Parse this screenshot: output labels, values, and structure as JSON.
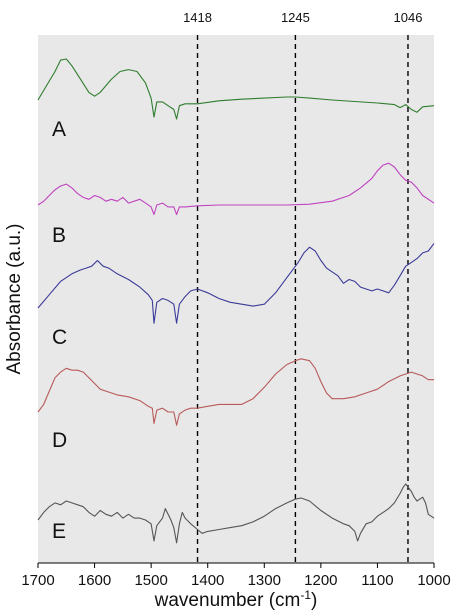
{
  "chart_data": {
    "type": "line",
    "title": "",
    "xlabel": "wavenumber (cm",
    "xlabel_sup": "-1",
    "xlabel_close": ")",
    "ylabel": "Absorbance (a.u.)",
    "x_reversed": true,
    "xlim": [
      1700,
      1000
    ],
    "xticks": [
      1700,
      1600,
      1500,
      1400,
      1300,
      1200,
      1100,
      1000
    ],
    "y_ticks_shown": false,
    "background": "#e8e8e8",
    "reference_lines": [
      {
        "x": 1418,
        "label": "1418"
      },
      {
        "x": 1245,
        "label": "1245"
      },
      {
        "x": 1046,
        "label": "1046"
      }
    ],
    "series": [
      {
        "name": "A",
        "color": "#2f7d2f",
        "points": [
          [
            1700,
            0.0
          ],
          [
            1680,
            0.5
          ],
          [
            1670,
            0.75
          ],
          [
            1660,
            1.05
          ],
          [
            1650,
            1.08
          ],
          [
            1640,
            0.9
          ],
          [
            1625,
            0.55
          ],
          [
            1610,
            0.2
          ],
          [
            1600,
            0.1
          ],
          [
            1590,
            0.2
          ],
          [
            1570,
            0.55
          ],
          [
            1555,
            0.75
          ],
          [
            1540,
            0.8
          ],
          [
            1525,
            0.75
          ],
          [
            1510,
            0.45
          ],
          [
            1500,
            0.05
          ],
          [
            1495,
            -0.45
          ],
          [
            1490,
            -0.05
          ],
          [
            1480,
            -0.05
          ],
          [
            1470,
            -0.15
          ],
          [
            1460,
            -0.25
          ],
          [
            1455,
            -0.5
          ],
          [
            1450,
            -0.15
          ],
          [
            1440,
            -0.1
          ],
          [
            1418,
            -0.1
          ],
          [
            1380,
            -0.02
          ],
          [
            1340,
            0.02
          ],
          [
            1300,
            0.05
          ],
          [
            1260,
            0.08
          ],
          [
            1245,
            0.08
          ],
          [
            1220,
            0.05
          ],
          [
            1180,
            0.0
          ],
          [
            1140,
            -0.04
          ],
          [
            1100,
            -0.08
          ],
          [
            1070,
            -0.12
          ],
          [
            1060,
            -0.2
          ],
          [
            1050,
            -0.12
          ],
          [
            1040,
            -0.25
          ],
          [
            1030,
            -0.32
          ],
          [
            1020,
            -0.18
          ],
          [
            1000,
            -0.15
          ]
        ]
      },
      {
        "name": "B",
        "color": "#c043c0",
        "points": [
          [
            1700,
            0.0
          ],
          [
            1690,
            0.1
          ],
          [
            1680,
            0.25
          ],
          [
            1670,
            0.4
          ],
          [
            1660,
            0.5
          ],
          [
            1650,
            0.55
          ],
          [
            1640,
            0.45
          ],
          [
            1630,
            0.3
          ],
          [
            1620,
            0.2
          ],
          [
            1610,
            0.15
          ],
          [
            1600,
            0.25
          ],
          [
            1590,
            0.2
          ],
          [
            1580,
            0.1
          ],
          [
            1570,
            0.15
          ],
          [
            1560,
            0.1
          ],
          [
            1550,
            0.2
          ],
          [
            1540,
            0.05
          ],
          [
            1530,
            0.1
          ],
          [
            1520,
            0.15
          ],
          [
            1510,
            0.05
          ],
          [
            1500,
            -0.05
          ],
          [
            1495,
            -0.25
          ],
          [
            1490,
            0.0
          ],
          [
            1480,
            0.05
          ],
          [
            1470,
            -0.05
          ],
          [
            1460,
            -0.05
          ],
          [
            1455,
            -0.25
          ],
          [
            1450,
            -0.05
          ],
          [
            1440,
            -0.05
          ],
          [
            1418,
            -0.02
          ],
          [
            1380,
            0.0
          ],
          [
            1340,
            0.0
          ],
          [
            1300,
            0.0
          ],
          [
            1260,
            0.0
          ],
          [
            1220,
            0.02
          ],
          [
            1180,
            0.1
          ],
          [
            1150,
            0.25
          ],
          [
            1130,
            0.45
          ],
          [
            1110,
            0.7
          ],
          [
            1100,
            0.9
          ],
          [
            1090,
            1.05
          ],
          [
            1080,
            1.1
          ],
          [
            1070,
            1.0
          ],
          [
            1060,
            0.8
          ],
          [
            1050,
            0.65
          ],
          [
            1040,
            0.6
          ],
          [
            1030,
            0.45
          ],
          [
            1020,
            0.25
          ],
          [
            1000,
            0.05
          ]
        ]
      },
      {
        "name": "C",
        "color": "#3b3b99",
        "points": [
          [
            1700,
            0.0
          ],
          [
            1680,
            0.35
          ],
          [
            1660,
            0.7
          ],
          [
            1640,
            0.9
          ],
          [
            1625,
            1.0
          ],
          [
            1615,
            1.05
          ],
          [
            1605,
            1.1
          ],
          [
            1595,
            1.25
          ],
          [
            1585,
            1.1
          ],
          [
            1575,
            1.05
          ],
          [
            1560,
            0.9
          ],
          [
            1540,
            0.75
          ],
          [
            1520,
            0.55
          ],
          [
            1505,
            0.35
          ],
          [
            1498,
            0.2
          ],
          [
            1495,
            -0.4
          ],
          [
            1490,
            0.15
          ],
          [
            1480,
            0.25
          ],
          [
            1470,
            0.2
          ],
          [
            1460,
            0.1
          ],
          [
            1455,
            -0.4
          ],
          [
            1450,
            0.1
          ],
          [
            1440,
            0.3
          ],
          [
            1430,
            0.45
          ],
          [
            1418,
            0.5
          ],
          [
            1400,
            0.4
          ],
          [
            1380,
            0.25
          ],
          [
            1360,
            0.15
          ],
          [
            1340,
            0.1
          ],
          [
            1320,
            0.05
          ],
          [
            1300,
            0.1
          ],
          [
            1280,
            0.4
          ],
          [
            1260,
            0.8
          ],
          [
            1240,
            1.2
          ],
          [
            1230,
            1.45
          ],
          [
            1220,
            1.6
          ],
          [
            1210,
            1.5
          ],
          [
            1200,
            1.25
          ],
          [
            1190,
            1.05
          ],
          [
            1180,
            0.95
          ],
          [
            1170,
            0.85
          ],
          [
            1160,
            0.65
          ],
          [
            1150,
            0.75
          ],
          [
            1140,
            0.7
          ],
          [
            1130,
            0.55
          ],
          [
            1110,
            0.45
          ],
          [
            1100,
            0.5
          ],
          [
            1090,
            0.45
          ],
          [
            1080,
            0.4
          ],
          [
            1070,
            0.6
          ],
          [
            1060,
            0.85
          ],
          [
            1050,
            1.1
          ],
          [
            1040,
            1.2
          ],
          [
            1030,
            1.3
          ],
          [
            1020,
            1.45
          ],
          [
            1010,
            1.5
          ],
          [
            1000,
            1.7
          ]
        ]
      },
      {
        "name": "D",
        "color": "#b85a5a",
        "points": [
          [
            1700,
            0.0
          ],
          [
            1690,
            0.2
          ],
          [
            1680,
            0.55
          ],
          [
            1670,
            0.9
          ],
          [
            1660,
            1.05
          ],
          [
            1650,
            1.15
          ],
          [
            1640,
            1.1
          ],
          [
            1630,
            1.1
          ],
          [
            1620,
            1.05
          ],
          [
            1610,
            0.9
          ],
          [
            1600,
            0.75
          ],
          [
            1590,
            0.6
          ],
          [
            1580,
            0.55
          ],
          [
            1560,
            0.45
          ],
          [
            1540,
            0.4
          ],
          [
            1520,
            0.3
          ],
          [
            1505,
            0.15
          ],
          [
            1498,
            0.1
          ],
          [
            1495,
            -0.3
          ],
          [
            1490,
            0.05
          ],
          [
            1480,
            0.1
          ],
          [
            1470,
            0.0
          ],
          [
            1460,
            0.0
          ],
          [
            1455,
            -0.35
          ],
          [
            1450,
            -0.05
          ],
          [
            1440,
            0.05
          ],
          [
            1430,
            0.1
          ],
          [
            1418,
            0.1
          ],
          [
            1400,
            0.15
          ],
          [
            1380,
            0.2
          ],
          [
            1360,
            0.2
          ],
          [
            1340,
            0.2
          ],
          [
            1320,
            0.35
          ],
          [
            1300,
            0.65
          ],
          [
            1280,
            1.0
          ],
          [
            1260,
            1.25
          ],
          [
            1245,
            1.35
          ],
          [
            1235,
            1.4
          ],
          [
            1220,
            1.35
          ],
          [
            1210,
            1.15
          ],
          [
            1200,
            0.8
          ],
          [
            1190,
            0.5
          ],
          [
            1180,
            0.35
          ],
          [
            1160,
            0.35
          ],
          [
            1140,
            0.4
          ],
          [
            1120,
            0.5
          ],
          [
            1100,
            0.6
          ],
          [
            1080,
            0.8
          ],
          [
            1060,
            0.95
          ],
          [
            1050,
            1.0
          ],
          [
            1040,
            1.05
          ],
          [
            1030,
            1.0
          ],
          [
            1020,
            0.95
          ],
          [
            1010,
            0.85
          ],
          [
            1000,
            0.85
          ]
        ]
      },
      {
        "name": "E",
        "color": "#555555",
        "points": [
          [
            1700,
            0.0
          ],
          [
            1690,
            0.2
          ],
          [
            1680,
            0.35
          ],
          [
            1670,
            0.45
          ],
          [
            1660,
            0.4
          ],
          [
            1650,
            0.5
          ],
          [
            1640,
            0.45
          ],
          [
            1630,
            0.4
          ],
          [
            1620,
            0.35
          ],
          [
            1610,
            0.2
          ],
          [
            1600,
            0.1
          ],
          [
            1590,
            0.25
          ],
          [
            1580,
            0.15
          ],
          [
            1570,
            0.1
          ],
          [
            1560,
            0.2
          ],
          [
            1550,
            0.05
          ],
          [
            1540,
            0.15
          ],
          [
            1530,
            0.05
          ],
          [
            1520,
            0.05
          ],
          [
            1510,
            0.0
          ],
          [
            1500,
            -0.1
          ],
          [
            1495,
            -0.55
          ],
          [
            1490,
            -0.15
          ],
          [
            1480,
            0.05
          ],
          [
            1475,
            0.3
          ],
          [
            1470,
            0.15
          ],
          [
            1465,
            0.0
          ],
          [
            1460,
            -0.2
          ],
          [
            1455,
            -0.6
          ],
          [
            1450,
            -0.1
          ],
          [
            1445,
            0.2
          ],
          [
            1440,
            0.05
          ],
          [
            1430,
            -0.1
          ],
          [
            1418,
            -0.25
          ],
          [
            1410,
            -0.35
          ],
          [
            1400,
            -0.3
          ],
          [
            1380,
            -0.25
          ],
          [
            1360,
            -0.2
          ],
          [
            1340,
            -0.15
          ],
          [
            1320,
            -0.05
          ],
          [
            1300,
            0.1
          ],
          [
            1280,
            0.3
          ],
          [
            1260,
            0.45
          ],
          [
            1245,
            0.55
          ],
          [
            1235,
            0.58
          ],
          [
            1220,
            0.5
          ],
          [
            1200,
            0.25
          ],
          [
            1180,
            0.05
          ],
          [
            1160,
            -0.1
          ],
          [
            1150,
            -0.15
          ],
          [
            1140,
            -0.3
          ],
          [
            1135,
            -0.55
          ],
          [
            1130,
            -0.35
          ],
          [
            1120,
            -0.1
          ],
          [
            1110,
            -0.05
          ],
          [
            1100,
            0.1
          ],
          [
            1090,
            0.2
          ],
          [
            1080,
            0.3
          ],
          [
            1070,
            0.45
          ],
          [
            1060,
            0.7
          ],
          [
            1055,
            0.85
          ],
          [
            1050,
            0.95
          ],
          [
            1045,
            0.85
          ],
          [
            1040,
            0.75
          ],
          [
            1035,
            0.6
          ],
          [
            1030,
            0.5
          ],
          [
            1025,
            0.55
          ],
          [
            1020,
            0.6
          ],
          [
            1015,
            0.45
          ],
          [
            1010,
            0.15
          ],
          [
            1000,
            0.05
          ]
        ]
      }
    ]
  }
}
